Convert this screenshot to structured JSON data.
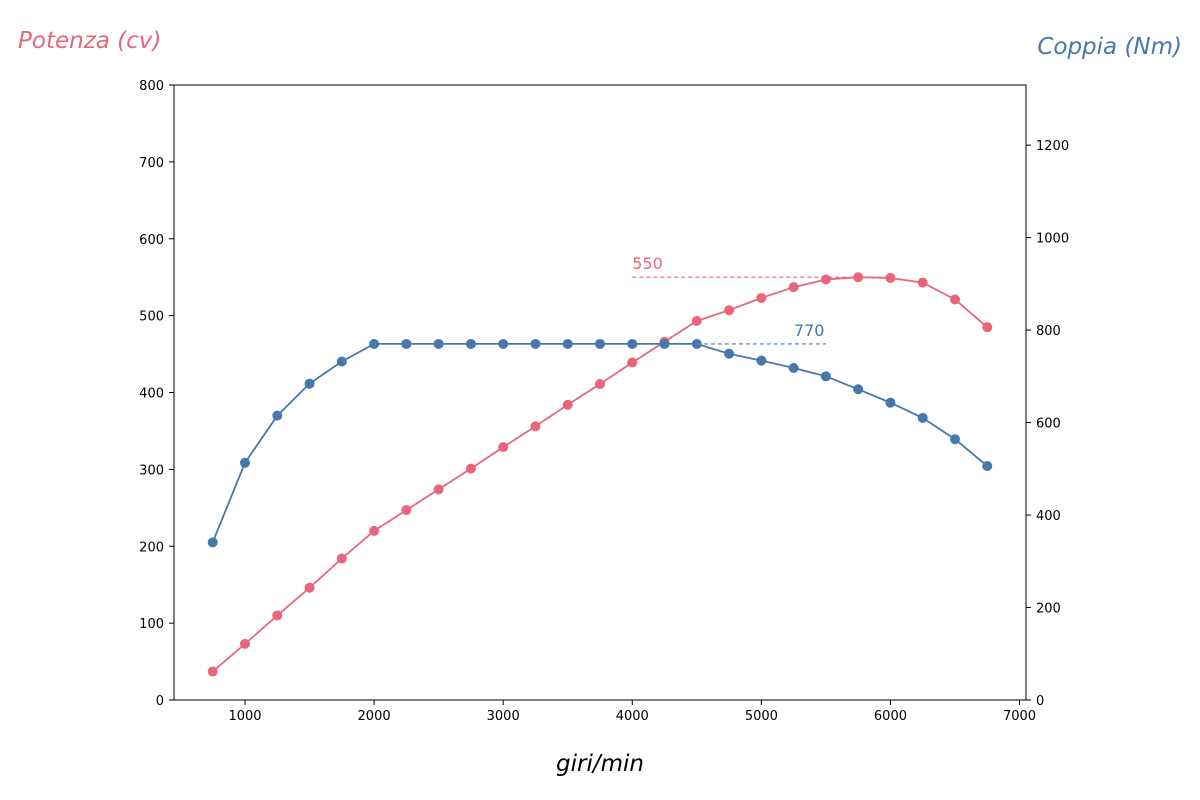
{
  "chart_data": {
    "type": "line",
    "title": "",
    "xlabel": "giri/min",
    "ylabel_left": "Potenza (cv)",
    "ylabel_right": "Coppia (Nm)",
    "xlim": [
      450,
      7050
    ],
    "ylim_left": [
      0,
      800
    ],
    "ylim_right": [
      0,
      1330
    ],
    "x_ticks": [
      1000,
      2000,
      3000,
      4000,
      5000,
      6000,
      7000
    ],
    "y_left_ticks": [
      0,
      100,
      200,
      300,
      400,
      500,
      600,
      700,
      800
    ],
    "y_right_ticks": [
      0,
      200,
      400,
      600,
      800,
      1000,
      1200
    ],
    "grid": false,
    "colors": {
      "power": "#e8667a",
      "torque": "#4678ab"
    },
    "x": [
      750,
      1000,
      1250,
      1500,
      1750,
      2000,
      2250,
      2500,
      2750,
      3000,
      3250,
      3500,
      3750,
      4000,
      4250,
      4500,
      4750,
      5000,
      5250,
      5500,
      5750,
      6000,
      6250,
      6500,
      6750
    ],
    "series": [
      {
        "name": "Potenza (cv)",
        "axis": "left",
        "values": [
          37,
          73,
          110,
          146,
          184,
          220,
          247,
          274,
          301,
          329,
          356,
          384,
          411,
          439,
          466,
          493,
          507,
          523,
          537,
          547,
          550,
          549,
          543,
          521,
          485
        ]
      },
      {
        "name": "Coppia (Nm)",
        "axis": "right",
        "values": [
          341,
          513,
          615,
          684,
          732,
          770,
          770,
          770,
          770,
          770,
          770,
          770,
          770,
          770,
          770,
          770,
          749,
          734,
          718,
          700,
          672,
          643,
          610,
          564,
          506
        ]
      }
    ],
    "annotations": [
      {
        "text": "550",
        "axis": "left",
        "value": 550,
        "x_from": 4000,
        "x_to": 6000,
        "series": "power"
      },
      {
        "text": "770",
        "axis": "right",
        "value": 770,
        "x_from": 4500,
        "x_to": 5500,
        "series": "torque"
      }
    ]
  }
}
